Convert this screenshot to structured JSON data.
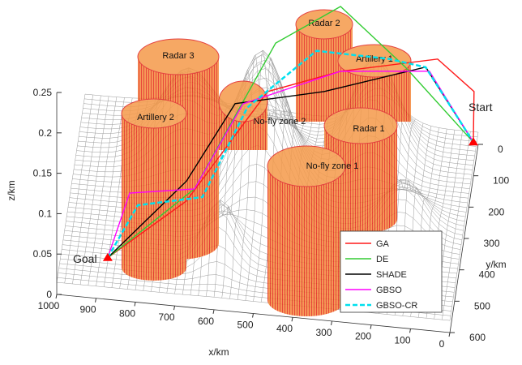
{
  "chart_data": {
    "type": "line3d",
    "xlabel": "x/km",
    "ylabel": "y/km",
    "zlabel": "z/km",
    "xlim": [
      0,
      1000
    ],
    "ylim": [
      0,
      600
    ],
    "zlim": [
      0,
      0.25
    ],
    "xticks": [
      0,
      100,
      200,
      300,
      400,
      500,
      600,
      700,
      800,
      900,
      1000
    ],
    "yticks": [
      0,
      100,
      200,
      300,
      400,
      500,
      600
    ],
    "zticks": [
      0,
      0.05,
      0.1,
      0.15,
      0.2,
      0.25
    ],
    "annotations": [
      "Radar 3",
      "Radar 2",
      "Artillery 1",
      "Artillery 2",
      "No-fly zone 2",
      "Radar 1",
      "No-fly zone 1"
    ],
    "goal_label": "Goal",
    "start_label": "Start",
    "series": [
      {
        "name": "GA",
        "color": "#ff1a1a",
        "x": [
          880,
          686,
          487,
          306,
          73,
          0,
          10
        ],
        "y": [
          520,
          470,
          406,
          371,
          252,
          89,
          20
        ],
        "z": [
          0.02,
          0.08,
          0.2,
          0.22,
          0.2,
          0.1,
          0.01
        ]
      },
      {
        "name": "DE",
        "color": "#33cc33",
        "x": [
          880,
          664,
          479,
          324,
          151,
          10
        ],
        "y": [
          520,
          480,
          302,
          218,
          287,
          20
        ],
        "z": [
          0.02,
          0.1,
          0.22,
          0.24,
          0.2,
          0.01
        ]
      },
      {
        "name": "SHADE",
        "color": "#000000",
        "x": [
          880,
          687,
          570,
          357,
          106,
          10
        ],
        "y": [
          520,
          458,
          403,
          287,
          230,
          20
        ],
        "z": [
          0.02,
          0.1,
          0.18,
          0.16,
          0.18,
          0.01
        ]
      },
      {
        "name": "GBSO",
        "color": "#ff00ff",
        "x": [
          880,
          825,
          667,
          550,
          312,
          95,
          10
        ],
        "y": [
          520,
          513,
          455,
          401,
          320,
          242,
          20
        ],
        "z": [
          0.02,
          0.1,
          0.09,
          0.18,
          0.2,
          0.18,
          0.01
        ]
      },
      {
        "name": "GBSO-CR",
        "color": "#00e0ee",
        "style": "dashed",
        "x": [
          880,
          806,
          644,
          541,
          380,
          198,
          103,
          10
        ],
        "y": [
          520,
          498,
          478,
          386,
          263,
          241,
          256,
          20
        ],
        "z": [
          0.02,
          0.08,
          0.09,
          0.17,
          0.2,
          0.19,
          0.19,
          0.01
        ]
      }
    ]
  }
}
